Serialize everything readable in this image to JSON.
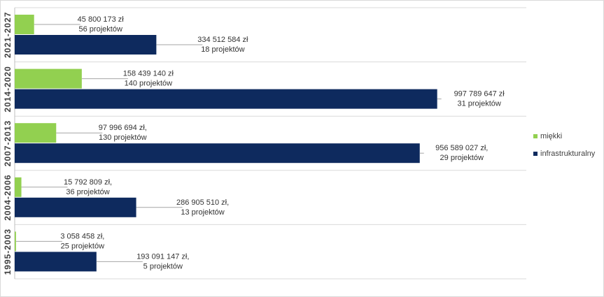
{
  "chart_data": {
    "type": "bar",
    "orientation": "horizontal",
    "categories": [
      "2021-2027",
      "2014-2020",
      "2007-2013",
      "2004-2006",
      "1995-2003"
    ],
    "series": [
      {
        "name": "miękki",
        "color": "#92d050",
        "values": [
          45800173,
          158439140,
          97996694,
          15792809,
          3058458
        ],
        "labels": [
          [
            "45 800 173 zł",
            "56 projektów"
          ],
          [
            "158 439 140 zł",
            "140 projektów"
          ],
          [
            "97 996 694 zł,",
            "130 projektów"
          ],
          [
            "15 792 809 zł,",
            "36 projektów"
          ],
          [
            "3 058 458 zł,",
            "25 projektów"
          ]
        ]
      },
      {
        "name": "infrastrukturalny",
        "color": "#0e2a5e",
        "values": [
          334512584,
          997789647,
          956589027,
          286905510,
          193091147
        ],
        "labels": [
          [
            "334 512 584 zł",
            "18 projektów"
          ],
          [
            "997 789 647 zł",
            "31 projektów"
          ],
          [
            "956 589 027 zł,",
            "29 projektów"
          ],
          [
            "286 905 510 zł,",
            "13 projektów"
          ],
          [
            "193 091 147 zł,",
            "5 projektów"
          ]
        ]
      }
    ],
    "title": "",
    "xlabel": "",
    "ylabel": "",
    "xlim": [
      0,
      1000000000
    ],
    "grid": "horizontal separators only",
    "legend": "right"
  }
}
